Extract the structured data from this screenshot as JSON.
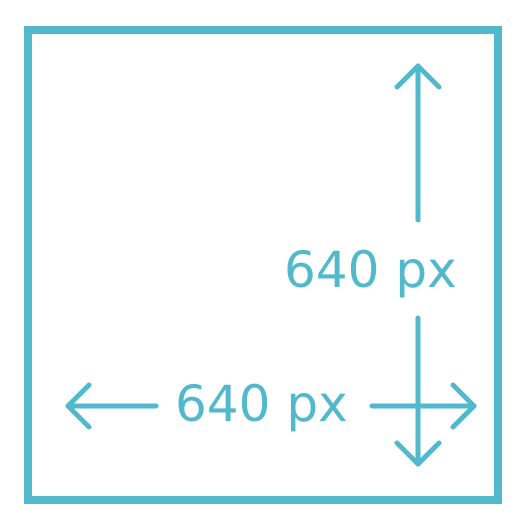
{
  "diagram": {
    "accent_color": "#52b8cc",
    "labels": {
      "height": "640 px",
      "width": "640 px"
    },
    "icons": {
      "up": "arrow-up-icon",
      "down": "arrow-down-icon",
      "left": "arrow-left-icon",
      "right": "arrow-right-icon"
    }
  }
}
